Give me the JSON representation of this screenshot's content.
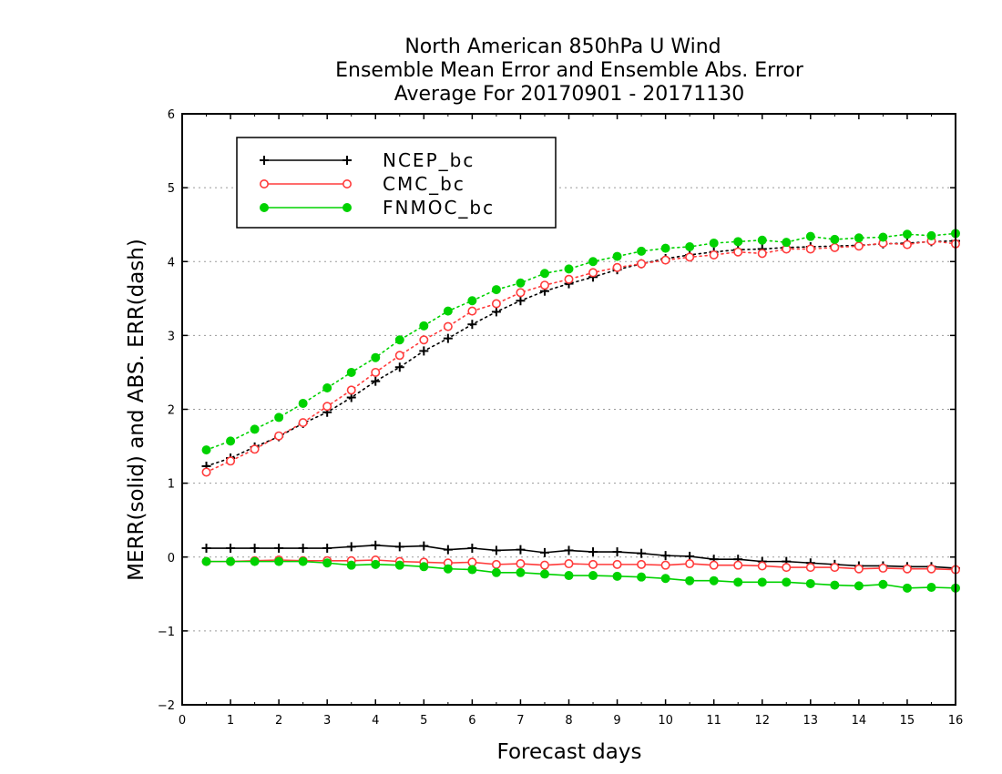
{
  "chart_data": {
    "type": "line",
    "title_lines": [
      "North American 850hPa U Wind",
      "Ensemble Mean Error and Ensemble Abs. Error",
      "Average For 20170901 - 20171130"
    ],
    "xlabel": "Forecast days",
    "ylabel": "MERR(solid) and ABS. ERR(dash)",
    "xlim": [
      0,
      16
    ],
    "ylim": [
      -2,
      6
    ],
    "x_ticks": [
      "0",
      "1",
      "2",
      "3",
      "4",
      "5",
      "6",
      "7",
      "8",
      "9",
      "10",
      "11",
      "12",
      "13",
      "14",
      "15",
      "16"
    ],
    "y_ticks": [
      "-2",
      "-1",
      "0",
      "1",
      "2",
      "3",
      "4",
      "5",
      "6"
    ],
    "grid": "horizontal dotted",
    "legend_position": "top-left",
    "x": [
      0.5,
      1,
      1.5,
      2,
      2.5,
      3,
      3.5,
      4,
      4.5,
      5,
      5.5,
      6,
      6.5,
      7,
      7.5,
      8,
      8.5,
      9,
      9.5,
      10,
      10.5,
      11,
      11.5,
      12,
      12.5,
      13,
      13.5,
      14,
      14.5,
      15,
      15.5,
      16
    ],
    "series": [
      {
        "name": "NCEP_bc",
        "color": "#000000",
        "marker": "plus",
        "merr": [
          0.12,
          0.12,
          0.12,
          0.12,
          0.12,
          0.12,
          0.14,
          0.16,
          0.14,
          0.15,
          0.1,
          0.12,
          0.09,
          0.1,
          0.06,
          0.09,
          0.07,
          0.07,
          0.05,
          0.02,
          0.01,
          -0.03,
          -0.03,
          -0.06,
          -0.06,
          -0.08,
          -0.1,
          -0.12,
          -0.12,
          -0.13,
          -0.13,
          -0.15
        ],
        "abs_err": [
          1.23,
          1.34,
          1.49,
          1.63,
          1.81,
          1.96,
          2.16,
          2.38,
          2.57,
          2.79,
          2.96,
          3.15,
          3.32,
          3.47,
          3.6,
          3.7,
          3.79,
          3.89,
          3.97,
          4.04,
          4.09,
          4.13,
          4.16,
          4.17,
          4.19,
          4.2,
          4.21,
          4.22,
          4.24,
          4.25,
          4.27,
          4.28
        ]
      },
      {
        "name": "CMC_bc",
        "color": "#ff3b3b",
        "marker": "open-circle",
        "merr": [
          -0.06,
          -0.06,
          -0.05,
          -0.04,
          -0.05,
          -0.05,
          -0.05,
          -0.04,
          -0.06,
          -0.07,
          -0.08,
          -0.07,
          -0.1,
          -0.09,
          -0.11,
          -0.09,
          -0.1,
          -0.1,
          -0.1,
          -0.11,
          -0.09,
          -0.11,
          -0.11,
          -0.12,
          -0.14,
          -0.14,
          -0.14,
          -0.16,
          -0.15,
          -0.16,
          -0.16,
          -0.17
        ],
        "abs_err": [
          1.15,
          1.3,
          1.46,
          1.64,
          1.82,
          2.04,
          2.26,
          2.5,
          2.73,
          2.94,
          3.12,
          3.33,
          3.43,
          3.58,
          3.68,
          3.76,
          3.85,
          3.92,
          3.97,
          4.02,
          4.06,
          4.09,
          4.13,
          4.11,
          4.17,
          4.17,
          4.19,
          4.21,
          4.25,
          4.23,
          4.28,
          4.24
        ]
      },
      {
        "name": "FNMOC_bc",
        "color": "#00d200",
        "marker": "filled-circle",
        "merr": [
          -0.06,
          -0.06,
          -0.06,
          -0.06,
          -0.06,
          -0.08,
          -0.11,
          -0.1,
          -0.11,
          -0.13,
          -0.16,
          -0.17,
          -0.21,
          -0.21,
          -0.23,
          -0.25,
          -0.25,
          -0.26,
          -0.27,
          -0.29,
          -0.32,
          -0.32,
          -0.34,
          -0.34,
          -0.34,
          -0.36,
          -0.38,
          -0.39,
          -0.37,
          -0.42,
          -0.41,
          -0.42
        ],
        "abs_err": [
          1.45,
          1.57,
          1.73,
          1.89,
          2.08,
          2.29,
          2.5,
          2.7,
          2.94,
          3.13,
          3.33,
          3.47,
          3.62,
          3.71,
          3.84,
          3.9,
          4.0,
          4.07,
          4.14,
          4.18,
          4.2,
          4.25,
          4.27,
          4.29,
          4.26,
          4.34,
          4.3,
          4.32,
          4.33,
          4.37,
          4.35,
          4.38
        ]
      }
    ]
  }
}
